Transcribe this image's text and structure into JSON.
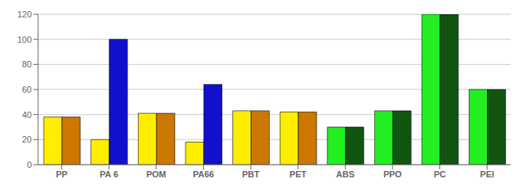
{
  "chart_data": {
    "type": "bar",
    "categories": [
      "PP",
      "PA 6",
      "POM",
      "PA66",
      "PBT",
      "PET",
      "ABS",
      "PPO",
      "PC",
      "PEI"
    ],
    "series": [
      {
        "values": [
          38,
          20,
          41,
          18,
          43,
          42,
          30,
          43,
          120,
          60
        ],
        "colors": [
          "#FFEE00",
          "#FFEE00",
          "#FFEE00",
          "#FFEE00",
          "#FFEE00",
          "#FFEE00",
          "#22EE22",
          "#22EE22",
          "#22EE22",
          "#22EE22"
        ]
      },
      {
        "values": [
          38,
          100,
          41,
          64,
          43,
          42,
          30,
          43,
          120,
          60
        ],
        "colors": [
          "#CC7700",
          "#1111CC",
          "#CC7700",
          "#1111CC",
          "#CC7700",
          "#CC7700",
          "#115511",
          "#115511",
          "#115511",
          "#115511"
        ]
      }
    ],
    "ylim": [
      0,
      120
    ],
    "yticks": [
      0,
      20,
      40,
      60,
      80,
      100,
      120
    ],
    "grid": true
  }
}
